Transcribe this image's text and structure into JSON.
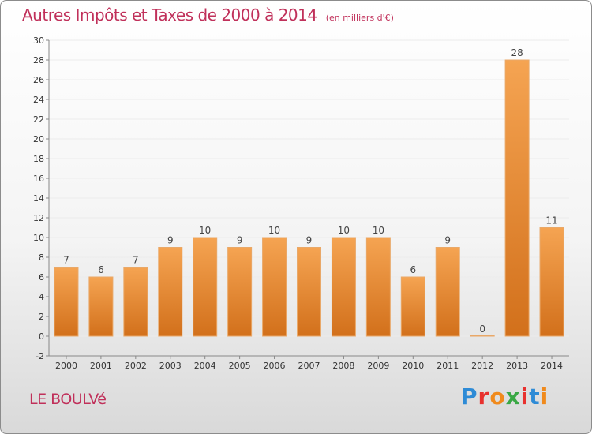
{
  "title": "Autres Impôts et Taxes de 2000 à 2014",
  "unit": "(en milliers d'€)",
  "location": "LE BOULVé",
  "brand": {
    "text": "Proxiti",
    "letter_colors": [
      "#2e8bd6",
      "#e8312e",
      "#f08a1c",
      "#3aa845",
      "#e8312e",
      "#2e8bd6",
      "#f08a1c"
    ]
  },
  "colors": {
    "bar_top": "#f5a452",
    "bar_bottom": "#d2701b",
    "bar_edge": "#e9a868",
    "title": "#c0305a",
    "grid": "#ececec"
  },
  "chart_data": {
    "type": "bar",
    "categories": [
      "2000",
      "2001",
      "2002",
      "2003",
      "2004",
      "2005",
      "2006",
      "2007",
      "2008",
      "2009",
      "2010",
      "2011",
      "2012",
      "2013",
      "2014"
    ],
    "values": [
      7,
      6,
      7,
      9,
      10,
      9,
      10,
      9,
      10,
      10,
      6,
      9,
      0,
      28,
      11
    ],
    "ylim": [
      -2,
      30
    ],
    "yticks": [
      -2,
      0,
      2,
      4,
      6,
      8,
      10,
      12,
      14,
      16,
      18,
      20,
      22,
      24,
      26,
      28,
      30
    ],
    "grid": true
  }
}
